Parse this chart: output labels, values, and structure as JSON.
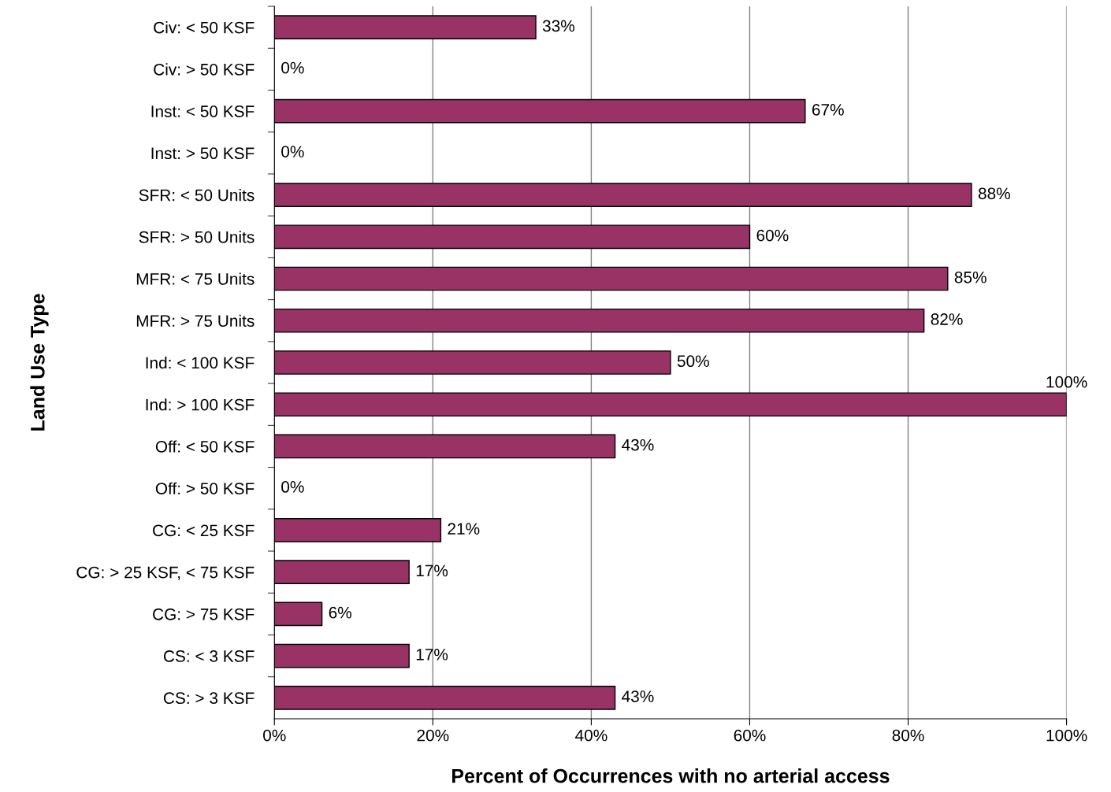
{
  "chart_data": {
    "type": "bar",
    "orientation": "horizontal",
    "xlabel": "Percent of Occurrences with no arterial access",
    "ylabel": "Land Use Type",
    "categories": [
      "Civ: < 50 KSF",
      "Civ: > 50 KSF",
      "Inst: < 50 KSF",
      "Inst: > 50 KSF",
      "SFR: < 50 Units",
      "SFR: > 50 Units",
      "MFR: < 75 Units",
      "MFR: > 75 Units",
      "Ind: < 100 KSF",
      "Ind: > 100 KSF",
      "Off: < 50 KSF",
      "Off: > 50 KSF",
      "CG: < 25 KSF",
      "CG: > 25 KSF, < 75 KSF",
      "CG: > 75 KSF",
      "CS: < 3 KSF",
      "CS: > 3 KSF"
    ],
    "values": [
      33,
      0,
      67,
      0,
      88,
      60,
      85,
      82,
      50,
      100,
      43,
      0,
      21,
      17,
      6,
      17,
      43
    ],
    "value_labels": [
      "33%",
      "0%",
      "67%",
      "0%",
      "88%",
      "60%",
      "85%",
      "82%",
      "50%",
      "100%",
      "43%",
      "0%",
      "21%",
      "17%",
      "6%",
      "17%",
      "43%"
    ],
    "color": "#993366",
    "grid": "x",
    "xlim": [
      0,
      100
    ],
    "xticks": [
      {
        "value": 0,
        "label": "0%"
      },
      {
        "value": 20,
        "label": "20%"
      },
      {
        "value": 40,
        "label": "40%"
      },
      {
        "value": 60,
        "label": "60%"
      },
      {
        "value": 80,
        "label": "80%"
      },
      {
        "value": 100,
        "label": "100%"
      }
    ]
  }
}
